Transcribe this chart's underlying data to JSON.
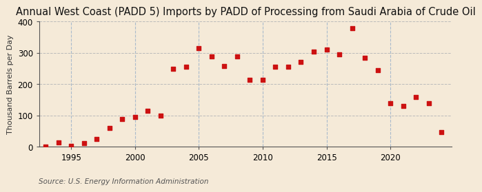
{
  "title": "Annual West Coast (PADD 5) Imports by PADD of Processing from Saudi Arabia of Crude Oil",
  "ylabel": "Thousand Barrels per Day",
  "source": "Source: U.S. Energy Information Administration",
  "background_color": "#f5ead8",
  "plot_background_color": "#f5ead8",
  "marker_color": "#cc1111",
  "years": [
    1993,
    1994,
    1995,
    1996,
    1997,
    1998,
    1999,
    2000,
    2001,
    2002,
    2003,
    2004,
    2005,
    2006,
    2007,
    2008,
    2009,
    2010,
    2011,
    2012,
    2013,
    2014,
    2015,
    2016,
    2017,
    2018,
    2019,
    2020,
    2021,
    2022,
    2023,
    2024
  ],
  "values": [
    2,
    15,
    3,
    13,
    25,
    60,
    90,
    95,
    115,
    100,
    250,
    255,
    315,
    290,
    258,
    288,
    215,
    215,
    255,
    255,
    272,
    305,
    310,
    295,
    380,
    285,
    245,
    140,
    130,
    160,
    140,
    47
  ],
  "ylim": [
    0,
    400
  ],
  "yticks": [
    0,
    100,
    200,
    300,
    400
  ],
  "xlim": [
    1992.5,
    2024.8
  ],
  "xticks": [
    1995,
    2000,
    2005,
    2010,
    2015,
    2020
  ],
  "hgrid_color": "#bbbbbb",
  "vgrid_color": "#aabbcc",
  "title_fontsize": 10.5,
  "label_fontsize": 8,
  "tick_fontsize": 8.5,
  "source_fontsize": 7.5
}
